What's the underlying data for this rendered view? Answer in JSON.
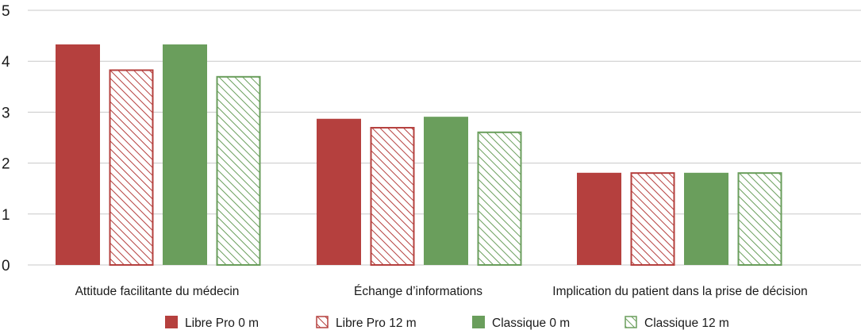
{
  "chart_data": {
    "type": "bar",
    "title": "",
    "xlabel": "",
    "ylabel": "",
    "ylim": [
      0,
      5
    ],
    "yticks": [
      0,
      1,
      2,
      3,
      4,
      5
    ],
    "grid": true,
    "legend_position": "bottom",
    "categories": [
      "Attitude facilitante du médecin",
      "Échange d’informations",
      "Implication du patient dans la prise de décision"
    ],
    "series": [
      {
        "name": "Libre Pro 0 m",
        "values": [
          4.33,
          2.87,
          1.81
        ],
        "color": "#b5403e",
        "pattern": "solid"
      },
      {
        "name": "Libre Pro 12 m",
        "values": [
          3.84,
          2.71,
          1.82
        ],
        "color": "#b5403e",
        "pattern": "hatched"
      },
      {
        "name": "Classique 0 m",
        "values": [
          4.33,
          2.91,
          1.81
        ],
        "color": "#6a9e5c",
        "pattern": "solid"
      },
      {
        "name": "Classique 12 m",
        "values": [
          3.71,
          2.62,
          1.82
        ],
        "color": "#6a9e5c",
        "pattern": "hatched"
      }
    ]
  }
}
